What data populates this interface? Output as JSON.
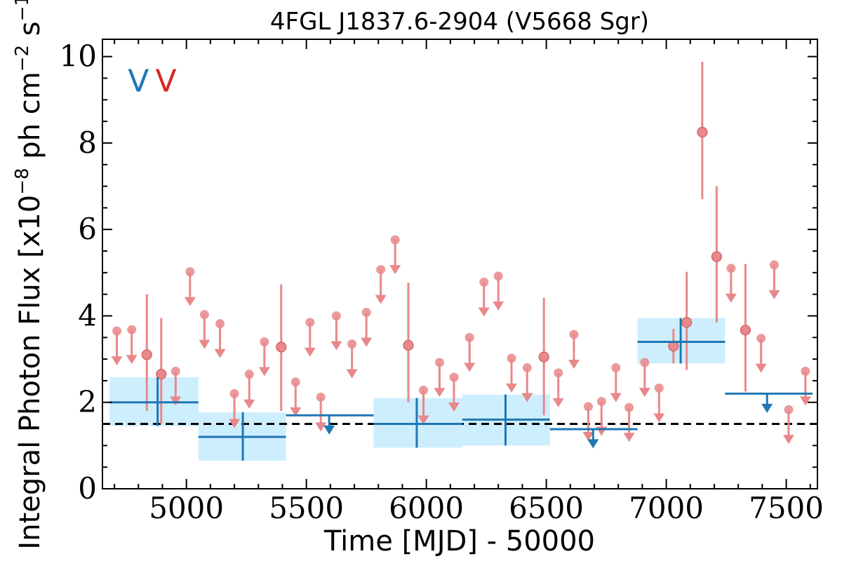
{
  "chart_data": {
    "type": "scatter",
    "title": "4FGL J1837.6-2904 (V5668 Sgr)",
    "xlabel": "Time [MJD] - 50000",
    "ylabel": "Integral Photon Flux [x10",
    "ylabel_exp1": "−8",
    "ylabel_mid": " ph cm",
    "ylabel_exp2": "−2",
    "ylabel_mid2": " s",
    "ylabel_exp3": "−1",
    "ylabel_end": "]",
    "xlim": [
      4650,
      7630
    ],
    "ylim": [
      0,
      10.4
    ],
    "x_ticks": [
      5000,
      5500,
      6000,
      6500,
      7000,
      7500
    ],
    "x_tick_labels": [
      "5000",
      "5500",
      "6000",
      "6500",
      "7000",
      "7500"
    ],
    "y_ticks": [
      0,
      2,
      4,
      6,
      8,
      10
    ],
    "y_tick_labels": [
      "0",
      "2",
      "4",
      "6",
      "8",
      "10"
    ],
    "markers": [
      {
        "text": "V",
        "color": "#1f77b4",
        "x": 4800,
        "y": 9.45
      },
      {
        "text": "V",
        "color": "#d62728",
        "x": 4915,
        "y": 9.45
      }
    ],
    "baseline": 1.5,
    "colors": {
      "blue": "#1f77b4",
      "red": "#e8888a",
      "shade": "#cdeefd"
    },
    "blue_detections": [
      {
        "x0": 4680,
        "x1": 5050,
        "y": 2.0,
        "lo": 1.45,
        "hi": 2.58,
        "xc": 4880
      },
      {
        "x0": 5050,
        "x1": 5415,
        "y": 1.2,
        "lo": 0.65,
        "hi": 1.77,
        "xc": 5235
      },
      {
        "x0": 5780,
        "x1": 6150,
        "y": 1.5,
        "lo": 0.95,
        "hi": 2.1,
        "xc": 5960
      },
      {
        "x0": 6150,
        "x1": 6515,
        "y": 1.6,
        "lo": 1.0,
        "hi": 2.18,
        "xc": 6330
      },
      {
        "x0": 6880,
        "x1": 7245,
        "y": 3.4,
        "lo": 2.9,
        "hi": 3.95,
        "xc": 7060
      }
    ],
    "blue_upper_limits": [
      {
        "x0": 5415,
        "x1": 5780,
        "y": 1.7,
        "xc": 5595
      },
      {
        "x0": 6515,
        "x1": 6880,
        "y": 1.38,
        "xc": 6695
      },
      {
        "x0": 7245,
        "x1": 7610,
        "y": 2.2,
        "xc": 7420
      }
    ],
    "red_detections": [
      {
        "x": 4835,
        "y": 3.1,
        "lo": 1.8,
        "hi": 4.5
      },
      {
        "x": 4895,
        "y": 2.65,
        "lo": 1.5,
        "hi": 3.95
      },
      {
        "x": 5395,
        "y": 3.28,
        "lo": 1.8,
        "hi": 4.73
      },
      {
        "x": 5925,
        "y": 3.32,
        "lo": 2.0,
        "hi": 4.77
      },
      {
        "x": 6490,
        "y": 3.05,
        "lo": 1.7,
        "hi": 4.42
      },
      {
        "x": 7030,
        "y": 3.3,
        "lo": 2.9,
        "hi": 3.7
      },
      {
        "x": 7085,
        "y": 3.85,
        "lo": 2.75,
        "hi": 5.02
      },
      {
        "x": 7150,
        "y": 8.25,
        "lo": 6.7,
        "hi": 9.88
      },
      {
        "x": 7210,
        "y": 5.37,
        "lo": 3.85,
        "hi": 7.0
      },
      {
        "x": 7330,
        "y": 3.67,
        "lo": 2.25,
        "hi": 5.2
      }
    ],
    "red_upper_limits": [
      {
        "x": 4710,
        "y": 3.65
      },
      {
        "x": 4772,
        "y": 3.68
      },
      {
        "x": 4955,
        "y": 2.72
      },
      {
        "x": 5015,
        "y": 5.02
      },
      {
        "x": 5075,
        "y": 4.03
      },
      {
        "x": 5140,
        "y": 3.82
      },
      {
        "x": 5200,
        "y": 2.2
      },
      {
        "x": 5262,
        "y": 2.65
      },
      {
        "x": 5325,
        "y": 3.4
      },
      {
        "x": 5455,
        "y": 2.47
      },
      {
        "x": 5515,
        "y": 3.85
      },
      {
        "x": 5560,
        "y": 2.12
      },
      {
        "x": 5625,
        "y": 4.0
      },
      {
        "x": 5690,
        "y": 3.35
      },
      {
        "x": 5750,
        "y": 4.08
      },
      {
        "x": 5810,
        "y": 5.07
      },
      {
        "x": 5870,
        "y": 5.76
      },
      {
        "x": 5988,
        "y": 2.28
      },
      {
        "x": 6055,
        "y": 2.92
      },
      {
        "x": 6115,
        "y": 2.58
      },
      {
        "x": 6180,
        "y": 3.5
      },
      {
        "x": 6240,
        "y": 4.78
      },
      {
        "x": 6300,
        "y": 4.92
      },
      {
        "x": 6355,
        "y": 3.02
      },
      {
        "x": 6420,
        "y": 2.8
      },
      {
        "x": 6550,
        "y": 2.68
      },
      {
        "x": 6615,
        "y": 3.57
      },
      {
        "x": 6675,
        "y": 1.9
      },
      {
        "x": 6730,
        "y": 2.02
      },
      {
        "x": 6790,
        "y": 2.8
      },
      {
        "x": 6845,
        "y": 1.88
      },
      {
        "x": 6910,
        "y": 2.92
      },
      {
        "x": 6970,
        "y": 2.33
      },
      {
        "x": 7270,
        "y": 5.1
      },
      {
        "x": 7395,
        "y": 3.48
      },
      {
        "x": 7450,
        "y": 5.18
      },
      {
        "x": 7510,
        "y": 1.83
      },
      {
        "x": 7580,
        "y": 2.72
      }
    ]
  }
}
